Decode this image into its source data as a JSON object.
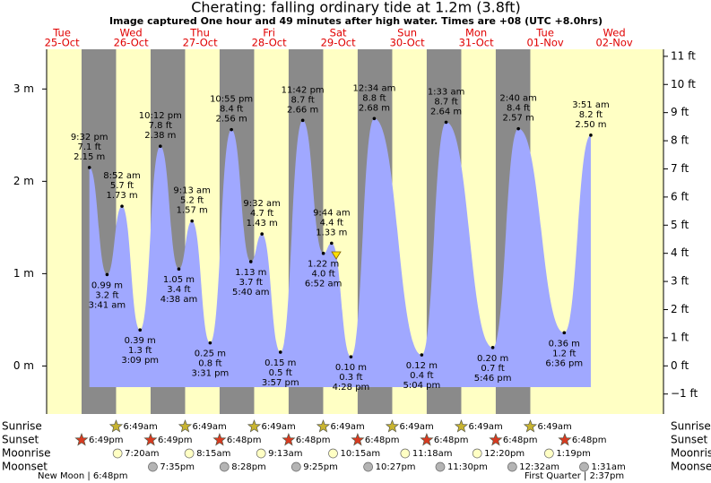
{
  "chart_data": {
    "type": "tide",
    "title": "Cherating: falling  ordinary tide at 1.2m (3.8ft)",
    "subtitle": "Image captured One hour and 49 minutes after high water. Times are +08 (UTC +8.0hrs)",
    "days": [
      {
        "weekday": "Tue",
        "date": "25-Oct"
      },
      {
        "weekday": "Wed",
        "date": "26-Oct"
      },
      {
        "weekday": "Thu",
        "date": "27-Oct"
      },
      {
        "weekday": "Fri",
        "date": "28-Oct"
      },
      {
        "weekday": "Sat",
        "date": "29-Oct"
      },
      {
        "weekday": "Sun",
        "date": "30-Oct"
      },
      {
        "weekday": "Mon",
        "date": "31-Oct"
      },
      {
        "weekday": "Tue",
        "date": "01-Nov"
      },
      {
        "weekday": "Wed",
        "date": "02-Nov"
      }
    ],
    "ylim": [
      -0.52,
      3.43
    ],
    "yticks": [
      {
        "value": 0,
        "label": "0 m"
      },
      {
        "value": 1,
        "label": "1 m"
      },
      {
        "value": 2,
        "label": "2 m"
      },
      {
        "value": 3,
        "label": "3 m"
      }
    ],
    "y2lim": [
      -1.71,
      11.25
    ],
    "y2ticks": [
      {
        "value": -1,
        "label": "−1 ft"
      },
      {
        "value": 0,
        "label": "0 ft"
      },
      {
        "value": 1,
        "label": "1 ft"
      },
      {
        "value": 2,
        "label": "2 ft"
      },
      {
        "value": 3,
        "label": "3 ft"
      },
      {
        "value": 4,
        "label": "4 ft"
      },
      {
        "value": 5,
        "label": "5 ft"
      },
      {
        "value": 6,
        "label": "6 ft"
      },
      {
        "value": 7,
        "label": "7 ft"
      },
      {
        "value": 8,
        "label": "8 ft"
      },
      {
        "value": 9,
        "label": "9 ft"
      },
      {
        "value": 10,
        "label": "10 ft"
      },
      {
        "value": 11,
        "label": "11 ft"
      }
    ],
    "color": "#a0a8ff",
    "extremes": [
      {
        "day": 0,
        "time": "9:32 pm",
        "value": 2.15,
        "label": "2.15 m",
        "feet": 7.1,
        "feet_label": "7.1 ft"
      },
      {
        "day": 1,
        "time": "3:41 am",
        "value": 0.99,
        "label": "0.99 m",
        "feet": 3.2,
        "feet_label": "3.2 ft"
      },
      {
        "day": 1,
        "time": "8:52 am",
        "value": 1.73,
        "label": "1.73 m",
        "feet": 5.7,
        "feet_label": "5.7 ft"
      },
      {
        "day": 1,
        "time": "3:09 pm",
        "value": 0.39,
        "label": "0.39 m",
        "feet": 1.3,
        "feet_label": "1.3 ft"
      },
      {
        "day": 1,
        "time": "10:12 pm",
        "value": 2.38,
        "label": "2.38 m",
        "feet": 7.8,
        "feet_label": "7.8 ft"
      },
      {
        "day": 2,
        "time": "4:38 am",
        "value": 1.05,
        "label": "1.05 m",
        "feet": 3.4,
        "feet_label": "3.4 ft"
      },
      {
        "day": 2,
        "time": "9:13 am",
        "value": 1.57,
        "label": "1.57 m",
        "feet": 5.2,
        "feet_label": "5.2 ft"
      },
      {
        "day": 2,
        "time": "3:31 pm",
        "value": 0.25,
        "label": "0.25 m",
        "feet": 0.8,
        "feet_label": "0.8 ft"
      },
      {
        "day": 2,
        "time": "10:55 pm",
        "value": 2.56,
        "label": "2.56 m",
        "feet": 8.4,
        "feet_label": "8.4 ft"
      },
      {
        "day": 3,
        "time": "5:40 am",
        "value": 1.13,
        "label": "1.13 m",
        "feet": 3.7,
        "feet_label": "3.7 ft"
      },
      {
        "day": 3,
        "time": "9:32 am",
        "value": 1.43,
        "label": "1.43 m",
        "feet": 4.7,
        "feet_label": "4.7 ft"
      },
      {
        "day": 3,
        "time": "3:57 pm",
        "value": 0.15,
        "label": "0.15 m",
        "feet": 0.5,
        "feet_label": "0.5 ft"
      },
      {
        "day": 3,
        "time": "11:42 pm",
        "value": 2.66,
        "label": "2.66 m",
        "feet": 8.7,
        "feet_label": "8.7 ft"
      },
      {
        "day": 4,
        "time": "6:52 am",
        "value": 1.22,
        "label": "1.22 m",
        "feet": 4,
        "feet_label": "4.0 ft"
      },
      {
        "day": 4,
        "time": "9:44 am",
        "value": 1.33,
        "label": "1.33 m",
        "feet": 4.4,
        "feet_label": "4.4 ft"
      },
      {
        "day": 4,
        "time": "4:28 pm",
        "value": 0.1,
        "label": "0.10 m",
        "feet": 0.3,
        "feet_label": "0.3 ft"
      },
      {
        "day": 5,
        "time": "12:34 am",
        "value": 2.68,
        "label": "2.68 m",
        "feet": 8.8,
        "feet_label": "8.8 ft"
      },
      {
        "day": 5,
        "time": "5:04 pm",
        "value": 0.12,
        "label": "0.12 m",
        "feet": 0.4,
        "feet_label": "0.4 ft"
      },
      {
        "day": 6,
        "time": "1:33 am",
        "value": 2.64,
        "label": "2.64 m",
        "feet": 8.7,
        "feet_label": "8.7 ft"
      },
      {
        "day": 6,
        "time": "5:46 pm",
        "value": 0.2,
        "label": "0.20 m",
        "feet": 0.7,
        "feet_label": "0.7 ft"
      },
      {
        "day": 7,
        "time": "2:40 am",
        "value": 2.57,
        "label": "2.57 m",
        "feet": 8.4,
        "feet_label": "8.4 ft"
      },
      {
        "day": 7,
        "time": "6:36 pm",
        "value": 0.36,
        "label": "0.36 m",
        "feet": 1.2,
        "feet_label": "1.2 ft"
      },
      {
        "day": 8,
        "time": "3:51 am",
        "value": 2.5,
        "label": "2.50 m",
        "feet": 8.2,
        "feet_label": "8.2 ft"
      }
    ],
    "events": [
      {
        "name": "Sunrise",
        "events": [
          {
            "day": 1,
            "time": "6:49am"
          },
          {
            "day": 2,
            "time": "6:49am"
          },
          {
            "day": 3,
            "time": "6:49am"
          },
          {
            "day": 4,
            "time": "6:49am"
          },
          {
            "day": 5,
            "time": "6:49am"
          },
          {
            "day": 6,
            "time": "6:49am"
          },
          {
            "day": 7,
            "time": "6:49am"
          }
        ]
      },
      {
        "name": "Sunset",
        "events": [
          {
            "day": 0,
            "time": "6:49pm"
          },
          {
            "day": 1,
            "time": "6:49pm"
          },
          {
            "day": 2,
            "time": "6:48pm"
          },
          {
            "day": 3,
            "time": "6:48pm"
          },
          {
            "day": 4,
            "time": "6:48pm"
          },
          {
            "day": 5,
            "time": "6:48pm"
          },
          {
            "day": 6,
            "time": "6:48pm"
          },
          {
            "day": 7,
            "time": "6:48pm"
          }
        ]
      },
      {
        "name": "Moonrise",
        "events": [
          {
            "day": 1,
            "time": "7:20am"
          },
          {
            "day": 2,
            "time": "8:15am"
          },
          {
            "day": 3,
            "time": "9:13am"
          },
          {
            "day": 4,
            "time": "10:15am"
          },
          {
            "day": 5,
            "time": "11:18am"
          },
          {
            "day": 6,
            "time": "12:20pm"
          },
          {
            "day": 7,
            "time": "1:19pm"
          }
        ]
      },
      {
        "name": "Moonset",
        "events": [
          {
            "day": 1,
            "time": "7:35pm"
          },
          {
            "day": 2,
            "time": "8:28pm"
          },
          {
            "day": 3,
            "time": "9:25pm"
          },
          {
            "day": 4,
            "time": "10:27pm"
          },
          {
            "day": 5,
            "time": "11:30pm"
          },
          {
            "day": 7,
            "time": "12:32am"
          },
          {
            "day": 8,
            "time": "1:31am"
          }
        ]
      }
    ],
    "moon_phases": [
      "New Moon | 6:48pm",
      "First Quarter | 2:37pm"
    ]
  }
}
